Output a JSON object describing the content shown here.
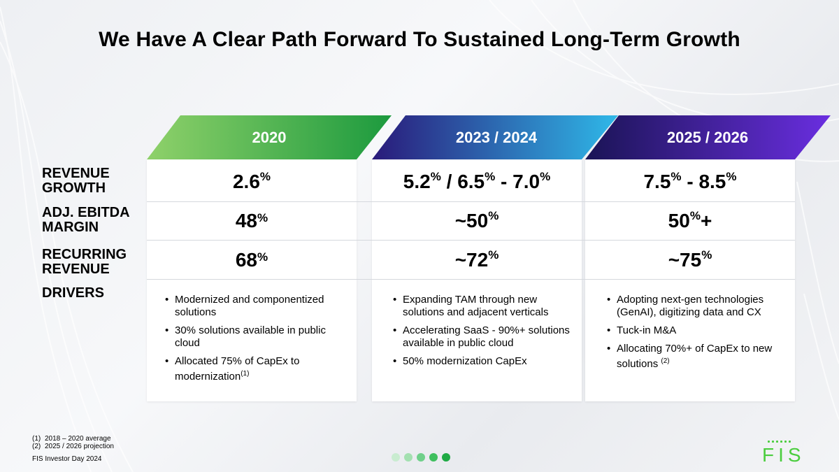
{
  "title": "We Have A Clear Path Forward To Sustained Long-Term Growth",
  "columns": [
    {
      "header": "2020"
    },
    {
      "header": "2023 / 2024"
    },
    {
      "header": "2025 / 2026"
    }
  ],
  "rows": {
    "revenue_growth": {
      "label_line1": "REVENUE",
      "label_line2": "GROWTH"
    },
    "adj_ebitda": {
      "label_line1": "ADJ. EBITDA",
      "label_line2": "MARGIN"
    },
    "recurring_revenue": {
      "label_line1": "RECURRING",
      "label_line2": "REVENUE"
    },
    "drivers": {
      "label": "DRIVERS"
    }
  },
  "metrics": {
    "rev_2020": {
      "v": "2.6",
      "u": "%"
    },
    "rev_2324": {
      "a": "5.2",
      "a_u": "%",
      "sep": " / ",
      "b": "6.5",
      "b_u": "%",
      "dash": " - ",
      "c": "7.0",
      "c_u": "%"
    },
    "rev_2526": {
      "a": "7.5",
      "a_u": "%",
      "dash": " - ",
      "b": "8.5",
      "b_u": "%"
    },
    "ebitda_2020": {
      "v": "48",
      "u": "%"
    },
    "ebitda_2324": {
      "v": "~50",
      "u": "%"
    },
    "ebitda_2526": {
      "v": "50",
      "u": "%",
      "suffix": "+"
    },
    "rec_2020": {
      "v": "68",
      "u": "%"
    },
    "rec_2324": {
      "v": "~72",
      "u": "%"
    },
    "rec_2526": {
      "v": "~75",
      "u": "%"
    }
  },
  "drivers": {
    "col1": {
      "b1": "Modernized and componentized solutions",
      "b2": "30% solutions available in public cloud",
      "b3": "Allocated 75% of CapEx to modernization",
      "b3_sup": "(1)"
    },
    "col2": {
      "b1": "Expanding TAM through new solutions and adjacent verticals",
      "b2": "Accelerating SaaS - 90%+ solutions available in public cloud",
      "b3": "50% modernization CapEx"
    },
    "col3": {
      "b1": "Adopting next-gen technologies (GenAI), digitizing data and CX",
      "b2": "Tuck-in M&A",
      "b3": "Allocating 70%+ of CapEx to new solutions",
      "b3_sup": "(2)"
    }
  },
  "footnotes": [
    {
      "num": "(1)",
      "text": "2018 – 2020 average"
    },
    {
      "num": "(2)",
      "text": "2025 / 2026 projection"
    }
  ],
  "source": "FIS Investor Day 2024",
  "logo_text": "FIS",
  "colors": {
    "green_start": "#8fd16a",
    "green_end": "#1c9a3e",
    "mid_start": "#2a1a7a",
    "mid_end": "#2fb8e8",
    "dark_start": "#1a1455",
    "dark_end": "#6a2ee0",
    "logo_green": "#4bcd3e"
  },
  "page_dots": [
    {
      "color": "#c9ecd0"
    },
    {
      "color": "#a3e0b0"
    },
    {
      "color": "#6fd08a"
    },
    {
      "color": "#3fbf5e"
    },
    {
      "color": "#1faa45"
    }
  ]
}
